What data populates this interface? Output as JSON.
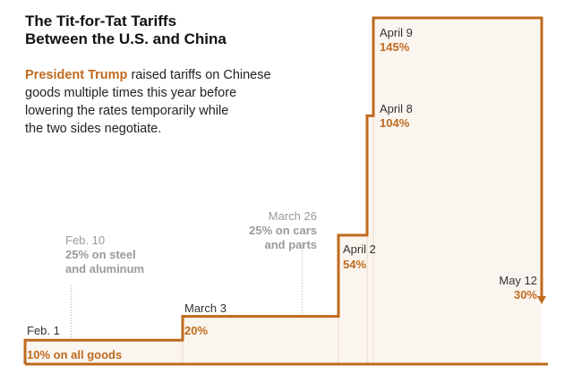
{
  "header": {
    "title_line1": "The Tit-for-Tat Tariffs",
    "title_line2": "Between the U.S. and China",
    "subtitle_highlight": "President Trump",
    "subtitle_line1_rest": " raised tariffs on Chinese",
    "subtitle_line2": "goods multiple times this year before",
    "subtitle_line3": "lowering the rates temporarily while",
    "subtitle_line4": "the two sides negotiate."
  },
  "colors": {
    "accent": "#bf6a1e",
    "fill": "#fbf5ef",
    "muted": "#9a9a9a",
    "dark": "#333333"
  },
  "chart_data": {
    "type": "area",
    "title": "The Tit-for-Tat Tariffs Between the U.S. and China",
    "x": [
      "Feb. 1",
      "March 3",
      "April 2",
      "April 8",
      "April 9",
      "May 12"
    ],
    "y": [
      10,
      20,
      54,
      104,
      145,
      30
    ],
    "step": true,
    "series": [
      {
        "name": "",
        "values": [
          10,
          20,
          54,
          104,
          145,
          30
        ]
      }
    ],
    "tariff_events": [
      {
        "date": "Feb. 1",
        "rate": "10% on all goods"
      },
      {
        "date": "March 3",
        "rate": "20%"
      },
      {
        "date": "April 2",
        "rate": "54%"
      },
      {
        "date": "April 8",
        "rate": "104%"
      },
      {
        "date": "April 9",
        "rate": "145%"
      },
      {
        "date": "May 12",
        "rate": "30%"
      }
    ],
    "other_events": [
      {
        "date": "Feb. 10",
        "line1": "25% on steel",
        "line2": "and aluminum"
      },
      {
        "date": "March 26",
        "line1": "25% on cars",
        "line2": "and parts"
      }
    ],
    "ylim": [
      0,
      145
    ],
    "grid": false,
    "legend": "none"
  }
}
